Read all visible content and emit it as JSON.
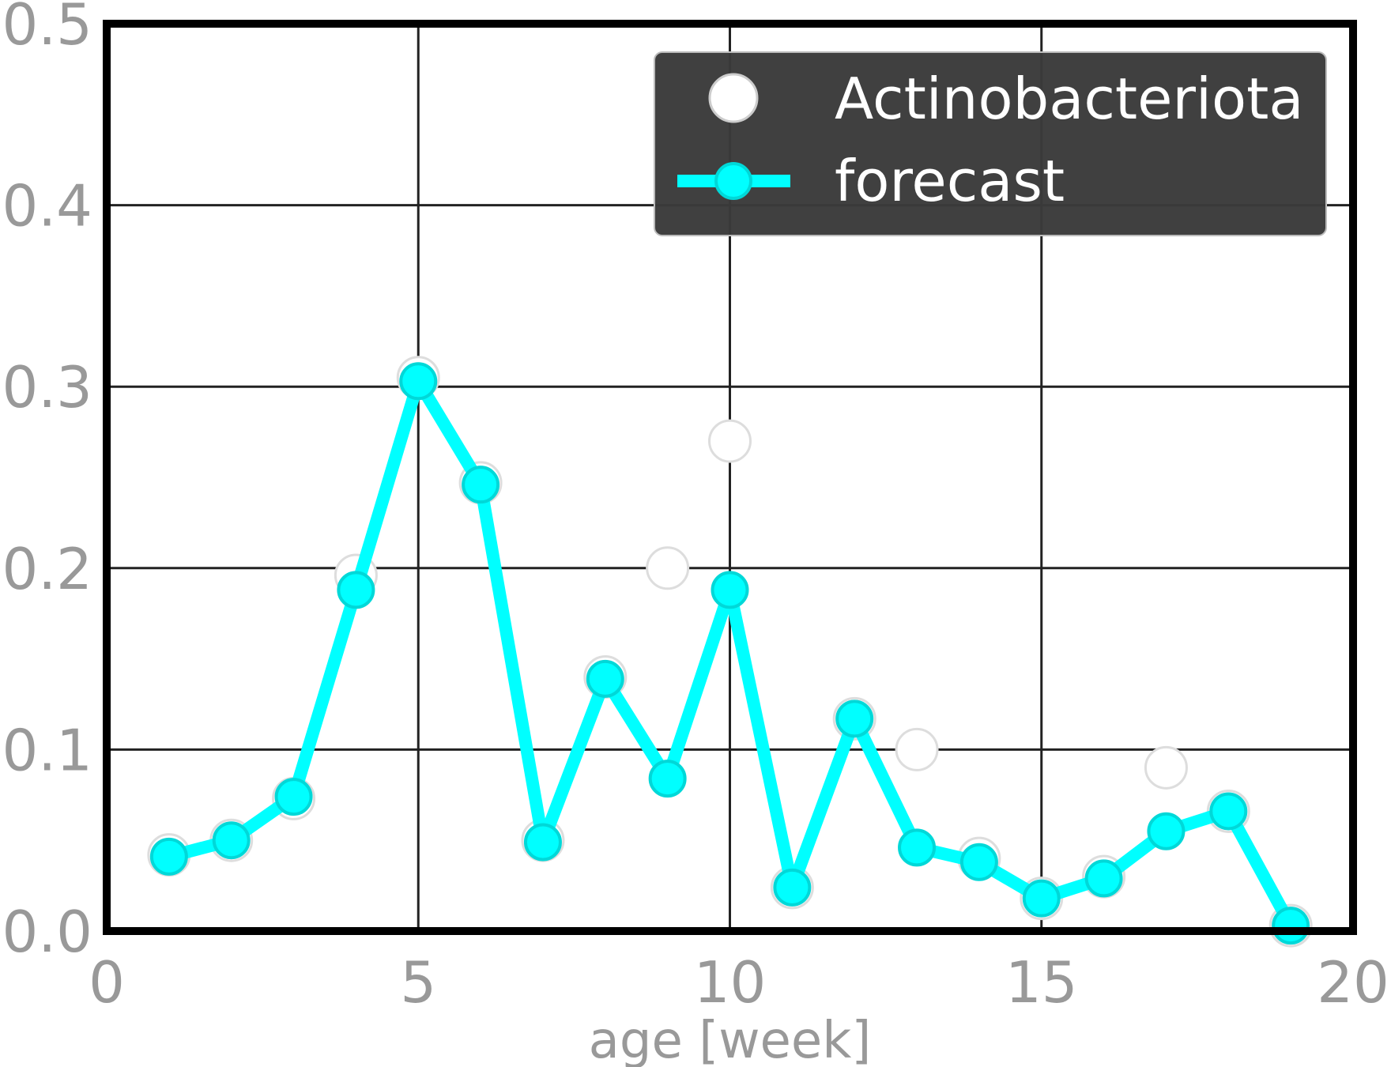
{
  "chart_data": {
    "type": "line",
    "title": "",
    "xlabel": "age [week]",
    "ylabel": "",
    "xlim": [
      0,
      20
    ],
    "ylim": [
      0,
      0.5
    ],
    "xticks": [
      0,
      5,
      10,
      15,
      20
    ],
    "xtick_labels": [
      "0",
      "5",
      "10",
      "15",
      "20"
    ],
    "yticks": [
      0.0,
      0.1,
      0.2,
      0.3,
      0.4,
      0.5
    ],
    "ytick_labels": [
      "0.0",
      "0.1",
      "0.2",
      "0.3",
      "0.4",
      "0.5"
    ],
    "grid": true,
    "legend_position": "top-right",
    "colors": {
      "observed": "#ffffff",
      "forecast": "#00ffff",
      "grid": "#222222",
      "axes": "#000000",
      "legend_bg": "#3a3a3a",
      "tick_text": "#999999"
    },
    "series": [
      {
        "name": "Actinobacteriota",
        "style": "markers",
        "x": [
          1,
          2,
          3,
          4,
          5,
          6,
          7,
          8,
          9,
          10,
          11,
          12,
          13,
          14,
          15,
          16,
          17,
          18,
          19
        ],
        "y": [
          0.042,
          0.05,
          0.073,
          0.196,
          0.305,
          0.247,
          0.05,
          0.14,
          0.2,
          0.27,
          0.024,
          0.117,
          0.1,
          0.04,
          0.018,
          0.03,
          0.09,
          0.066,
          0.003
        ]
      },
      {
        "name": "forecast",
        "style": "line+markers",
        "x": [
          1,
          2,
          3,
          4,
          5,
          6,
          7,
          8,
          9,
          10,
          11,
          12,
          13,
          14,
          15,
          16,
          17,
          18,
          19
        ],
        "y": [
          0.041,
          0.05,
          0.074,
          0.188,
          0.303,
          0.246,
          0.049,
          0.139,
          0.084,
          0.188,
          0.024,
          0.117,
          0.046,
          0.038,
          0.018,
          0.029,
          0.055,
          0.066,
          0.003
        ]
      }
    ]
  }
}
